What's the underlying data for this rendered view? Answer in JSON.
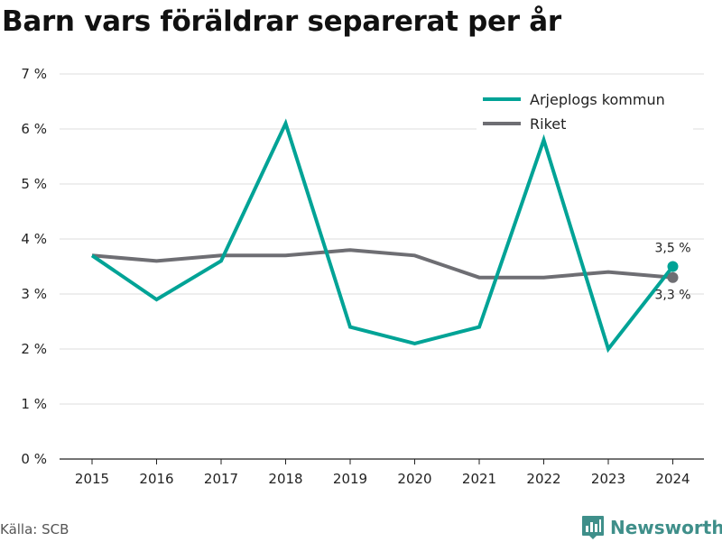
{
  "title": "Barn vars föräldrar separerat per år",
  "source": "Källa: SCB",
  "brand": {
    "name": "Newsworthy",
    "icon": "newsworthy-logo-icon"
  },
  "chart_data": {
    "type": "line",
    "title": "Barn vars föräldrar separerat per år",
    "xlabel": "",
    "ylabel": "",
    "x": [
      "2015",
      "2016",
      "2017",
      "2018",
      "2019",
      "2020",
      "2021",
      "2022",
      "2023",
      "2024"
    ],
    "series": [
      {
        "name": "Arjeplogs kommun",
        "color": "#00a396",
        "values": [
          3.7,
          2.9,
          3.6,
          6.1,
          2.4,
          2.1,
          2.4,
          5.8,
          2.0,
          3.5
        ],
        "end_label": "3,5 %"
      },
      {
        "name": "Riket",
        "color": "#6e6e73",
        "values": [
          3.7,
          3.6,
          3.7,
          3.7,
          3.8,
          3.7,
          3.3,
          3.3,
          3.4,
          3.3
        ],
        "end_label": "3,3 %"
      }
    ],
    "ylim": [
      0,
      7
    ],
    "yticks": [
      0,
      1,
      2,
      3,
      4,
      5,
      6,
      7
    ],
    "ytick_labels": [
      "0 %",
      "1 %",
      "2 %",
      "3 %",
      "4 %",
      "5 %",
      "6 %",
      "7 %"
    ],
    "grid": true,
    "legend_position": "top-right"
  }
}
